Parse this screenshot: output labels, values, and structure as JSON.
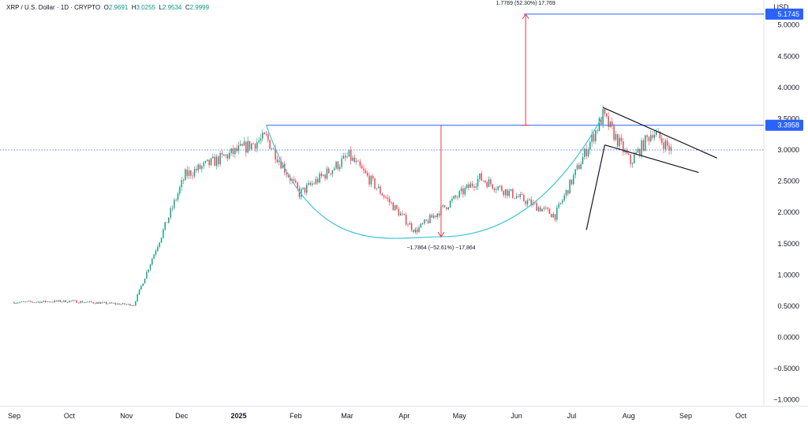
{
  "header": {
    "symbol": "XRP / U.S. Dollar · 1D · CRYPTO",
    "open_label": "O",
    "open": "2.9691",
    "high_label": "H",
    "high": "3.0255",
    "low_label": "L",
    "low": "2.9534",
    "close_label": "C",
    "close": "2.9999"
  },
  "price_axis": {
    "currency": "USD",
    "ticks": [
      "5.0000",
      "4.5000",
      "4.0000",
      "3.5000",
      "3.0000",
      "2.5000",
      "2.0000",
      "1.5000",
      "1.0000",
      "0.5000",
      "0.0000",
      "−0.5000",
      "−1.0000"
    ],
    "tick_values": [
      5,
      4.5,
      4,
      3.5,
      3,
      2.5,
      2,
      1.5,
      1,
      0.5,
      0,
      -0.5,
      -1
    ],
    "badges": [
      {
        "text": "5.1745",
        "value": 5.1745
      },
      {
        "text": "3.3958",
        "value": 3.3958
      }
    ]
  },
  "time_axis": {
    "labels": [
      "Sep",
      "Oct",
      "Nov",
      "Dec",
      "2025",
      "Feb",
      "Mar",
      "Apr",
      "May",
      "Jun",
      "Jul",
      "Aug",
      "Sep",
      "Oct"
    ],
    "bold_label": "2025"
  },
  "annotations": {
    "target_measure": "1.7769 (52.30%) 17,769",
    "drop_measure": "−1.7864 (−52.61%) −17,864"
  },
  "colors": {
    "up": "#089981",
    "down": "#f23645",
    "level_line": "#2962ff",
    "cup_curve": "#3ec6d8",
    "measure_arrow": "#f23645",
    "pattern_lines": "#131722",
    "current_price_line": "#2962ff"
  },
  "chart_data": {
    "type": "candlestick",
    "symbol": "XRP / U.S. Dollar",
    "interval": "1D",
    "x_range": [
      "2024-08-26",
      "2025-10-10"
    ],
    "ylim": [
      -1.08,
      5.35
    ],
    "y_unit": "USD",
    "key_points": [
      {
        "date": "2024-09-01",
        "price": 0.56
      },
      {
        "date": "2024-10-01",
        "price": 0.58
      },
      {
        "date": "2024-11-05",
        "price": 0.52
      },
      {
        "date": "2024-12-03",
        "price": 2.6
      },
      {
        "date": "2025-01-16",
        "price": 3.2
      },
      {
        "date": "2025-02-03",
        "price": 2.3
      },
      {
        "date": "2025-03-02",
        "price": 2.9
      },
      {
        "date": "2025-04-07",
        "price": 1.7
      },
      {
        "date": "2025-05-12",
        "price": 2.55
      },
      {
        "date": "2025-06-22",
        "price": 1.95
      },
      {
        "date": "2025-07-18",
        "price": 3.55
      },
      {
        "date": "2025-08-02",
        "price": 2.8
      },
      {
        "date": "2025-08-14",
        "price": 3.3
      },
      {
        "date": "2025-08-24",
        "price": 3.0
      }
    ],
    "levels": {
      "neckline": 3.3958,
      "target": 5.1745,
      "current": 2.9999
    },
    "cup_bottom": 1.61,
    "target_move": 1.7769,
    "drop_move": -1.7864,
    "last_candle": {
      "open": 2.9691,
      "high": 3.0255,
      "low": 2.9534,
      "close": 2.9999
    },
    "grid": false
  }
}
